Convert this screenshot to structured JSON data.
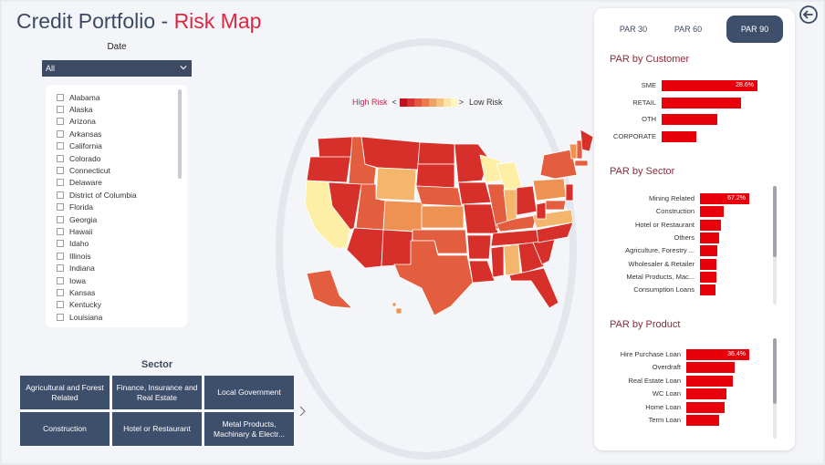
{
  "header": {
    "title_main": "Credit Portfolio - ",
    "title_accent": "Risk Map"
  },
  "date_filter": {
    "label": "Date",
    "selected": "All"
  },
  "states": [
    "Alabama",
    "Alaska",
    "Arizona",
    "Arkansas",
    "California",
    "Colorado",
    "Connecticut",
    "Delaware",
    "District of Columbia",
    "Florida",
    "Georgia",
    "Hawaii",
    "Idaho",
    "Illinois",
    "Indiana",
    "Iowa",
    "Kansas",
    "Kentucky",
    "Louisiana"
  ],
  "sector_slicer": {
    "title": "Sector",
    "tiles": [
      "Agricultural and Forest Related",
      "Finance, Insurance and Real Estate",
      "Local Government",
      "Construction",
      "Hotel or Restaurant",
      "Metal Products, Machinary & Electr..."
    ]
  },
  "map_legend": {
    "high_label": "High Risk",
    "low_label": "Low Risk",
    "colors": [
      "#c1121f",
      "#dc2f2f",
      "#e6553f",
      "#ec7a4e",
      "#f1a064",
      "#f6c081",
      "#fbe5a1",
      "#fff7bd"
    ]
  },
  "risk_colors": {
    "r1": "#d7302a",
    "r2": "#e35d3f",
    "r3": "#ee9253",
    "r4": "#f3b66c",
    "r5": "#fdefa6"
  },
  "tabs": {
    "par30": "PAR 30",
    "par60": "PAR 60",
    "par90": "PAR 90",
    "active": "PAR 90"
  },
  "par_customer": {
    "title": "PAR by Customer",
    "rows": [
      {
        "label": "SME",
        "value": 28.6,
        "shown": "28.6%"
      },
      {
        "label": "RETAIL",
        "value": 23.7,
        "shown": ""
      },
      {
        "label": "OTH",
        "value": 16.5,
        "shown": ""
      },
      {
        "label": "CORPORATE",
        "value": 10.4,
        "shown": ""
      }
    ]
  },
  "par_sector": {
    "title": "PAR by Sector",
    "rows": [
      {
        "label": "Mining Related",
        "value": 67.2,
        "shown": "67.2%"
      },
      {
        "label": "Construction",
        "value": 32,
        "shown": ""
      },
      {
        "label": "Hotel or Restaurant",
        "value": 29,
        "shown": ""
      },
      {
        "label": "Others",
        "value": 26,
        "shown": ""
      },
      {
        "label": "Agriculture, Forestry ...",
        "value": 24,
        "shown": ""
      },
      {
        "label": "Wholesaler & Retailer",
        "value": 23,
        "shown": ""
      },
      {
        "label": "Metal Products, Mac...",
        "value": 22,
        "shown": ""
      },
      {
        "label": "Consumption Loans",
        "value": 21,
        "shown": ""
      }
    ]
  },
  "par_product": {
    "title": "PAR by Product",
    "rows": [
      {
        "label": "Hire Purchase Loan",
        "value": 36.4,
        "shown": "36.4%"
      },
      {
        "label": "Overdraft",
        "value": 28,
        "shown": ""
      },
      {
        "label": "Real Estate Loan",
        "value": 27,
        "shown": ""
      },
      {
        "label": "WC Loan",
        "value": 23,
        "shown": ""
      },
      {
        "label": "Home Loan",
        "value": 22,
        "shown": ""
      },
      {
        "label": "Term Loan",
        "value": 19,
        "shown": ""
      }
    ]
  }
}
